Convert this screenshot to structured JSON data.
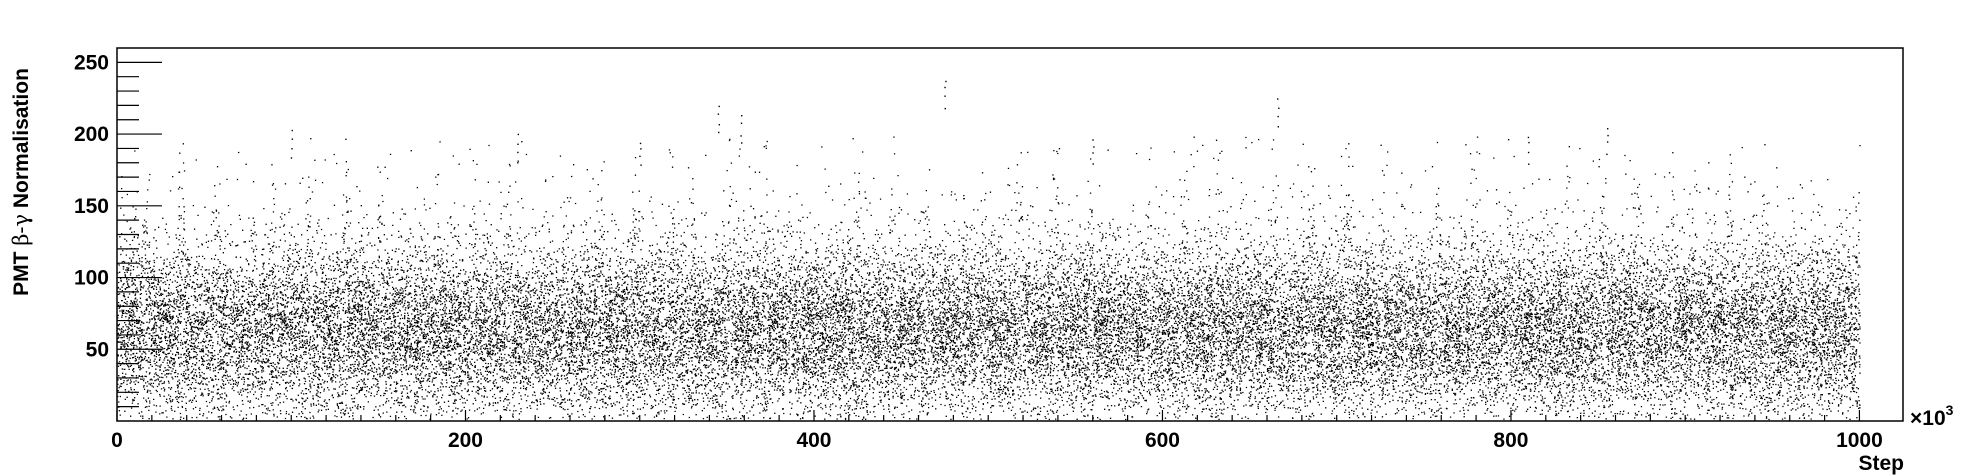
{
  "chart_data": {
    "type": "scatter",
    "title": "",
    "xlabel": "Step",
    "ylabel": {
      "prefix": "PMT ",
      "symbol": "β-γ",
      "suffix": " Normalisation"
    },
    "x_multiplier_label": "×10",
    "x_multiplier_exponent": "3",
    "xlim": [
      0,
      1025
    ],
    "ylim": [
      0,
      260
    ],
    "x_ticks": [
      0,
      200,
      400,
      600,
      800,
      1000
    ],
    "y_ticks": [
      50,
      100,
      150,
      200,
      250
    ],
    "x_tick_labels": [
      "0",
      "200",
      "400",
      "600",
      "800",
      "1000"
    ],
    "y_tick_labels": [
      "50",
      "100",
      "150",
      "200",
      "250"
    ],
    "x_range_of_points": [
      0,
      1000
    ],
    "point_cloud": {
      "description_of_distribution": "dense cloud of single-pixel points, bulk concentrated around y≈40–90, sparse outliers up to ~240",
      "typical_mean": 62,
      "outlier_examples": [
        {
          "x": 345,
          "y": 221
        },
        {
          "x": 358,
          "y": 215
        },
        {
          "x": 475,
          "y": 240
        },
        {
          "x": 666,
          "y": 226
        },
        {
          "x": 855,
          "y": 207
        },
        {
          "x": 100,
          "y": 205
        },
        {
          "x": 230,
          "y": 201
        },
        {
          "x": 300,
          "y": 197
        },
        {
          "x": 560,
          "y": 200
        },
        {
          "x": 810,
          "y": 201
        }
      ]
    },
    "grid": false,
    "legend": "none",
    "marker_color": "#000000"
  }
}
